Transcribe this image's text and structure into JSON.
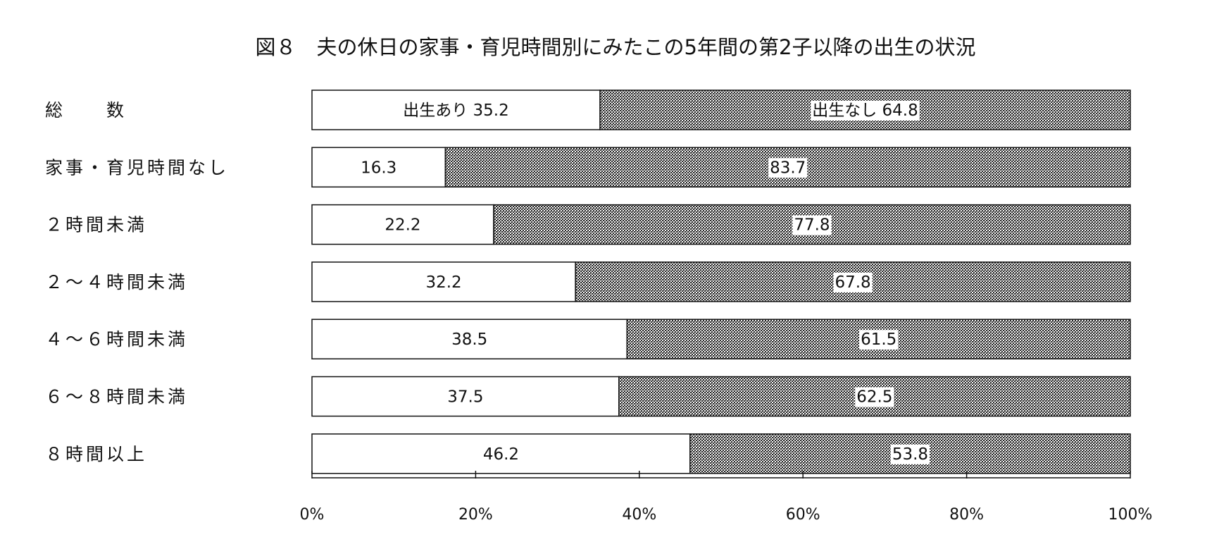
{
  "chart_data": {
    "type": "bar",
    "orientation": "horizontal",
    "stacked": true,
    "percent_stacked": true,
    "title": "図８　夫の休日の家事・育児時間別にみたこの5年間の第2子以降の出生の状況",
    "categories": [
      "総　　数",
      "家事・育児時間なし",
      "２時間未満",
      "２～４時間未満",
      "４～６時間未満",
      "６～８時間未満",
      "８時間以上"
    ],
    "series": [
      {
        "name": "出生あり",
        "values": [
          35.2,
          16.3,
          22.2,
          32.2,
          38.5,
          37.5,
          46.2
        ],
        "color": "#ffffff"
      },
      {
        "name": "出生なし",
        "values": [
          64.8,
          83.7,
          77.8,
          67.8,
          61.5,
          62.5,
          53.8
        ],
        "color": "#555555",
        "pattern": "crosshatch"
      }
    ],
    "value_labels": [
      [
        "出生あり 35.2",
        "出生なし 64.8"
      ],
      [
        "16.3",
        "83.7"
      ],
      [
        "22.2",
        "77.8"
      ],
      [
        "32.2",
        "67.8"
      ],
      [
        "38.5",
        "61.5"
      ],
      [
        "37.5",
        "62.5"
      ],
      [
        "46.2",
        "53.8"
      ]
    ],
    "xlim": [
      0,
      100
    ],
    "xticks": [
      "0%",
      "20%",
      "40%",
      "60%",
      "80%",
      "100%"
    ],
    "xlabel": "",
    "ylabel": "",
    "grid": false,
    "legend": "none"
  }
}
